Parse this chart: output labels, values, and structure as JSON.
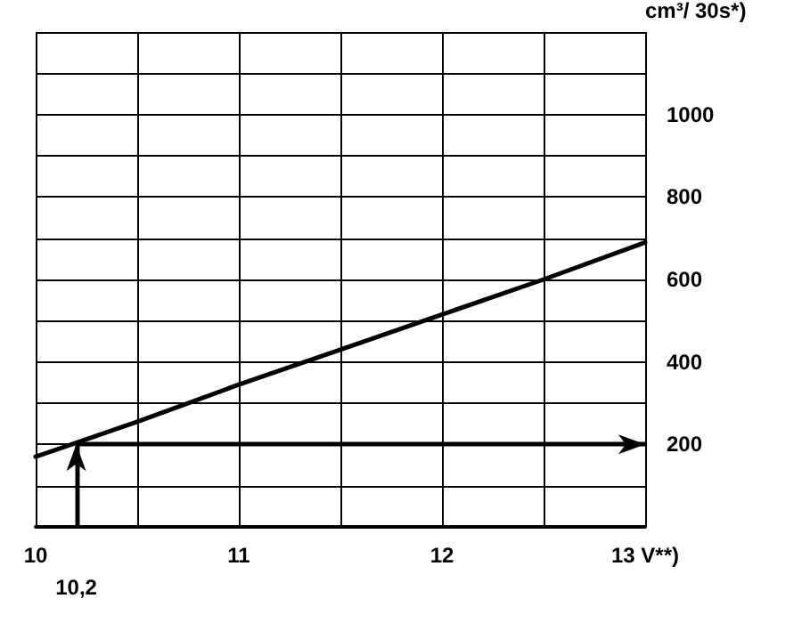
{
  "chart_data": {
    "type": "line",
    "ylabel": "cm³/ 30s*)",
    "x": [
      10,
      10.5,
      11,
      11.5,
      12,
      12.5,
      13
    ],
    "series": [
      {
        "color": "#000000",
        "values": [
          170,
          255,
          345,
          430,
          515,
          600,
          690
        ]
      }
    ],
    "xlim": [
      10,
      13
    ],
    "xticks": [
      10,
      {
        "value": 10.5,
        "label": null
      },
      11,
      {
        "value": 11.5,
        "label": null
      },
      12,
      {
        "value": 12.5,
        "label": null
      },
      {
        "value": 13,
        "label": "13 V**)"
      }
    ],
    "ylim": [
      0,
      1200
    ],
    "yticks": [
      {
        "value": 0,
        "label": null
      },
      {
        "value": 100,
        "label": null
      },
      200,
      {
        "value": 300,
        "label": null
      },
      400,
      {
        "value": 500,
        "label": null
      },
      600,
      {
        "value": 700,
        "label": null
      },
      800,
      {
        "value": 900,
        "label": null
      },
      1000,
      {
        "value": 1100,
        "label": null
      },
      {
        "value": 1200,
        "label": null
      }
    ],
    "ref_lines": [
      {
        "axis": "x",
        "value": 10.2,
        "label": "10,2",
        "color": "#000000"
      },
      {
        "axis": "y",
        "value": 200,
        "color": "#000000"
      }
    ],
    "grid": true,
    "marker": "none",
    "line_style": "solid"
  }
}
